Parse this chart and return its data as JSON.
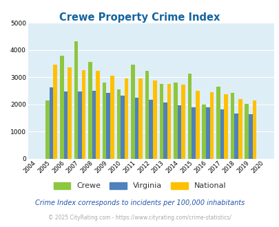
{
  "title": "Crewe Property Crime Index",
  "years": [
    2004,
    2005,
    2006,
    2007,
    2008,
    2009,
    2010,
    2011,
    2012,
    2013,
    2014,
    2015,
    2016,
    2017,
    2018,
    2019,
    2020
  ],
  "crewe": [
    0,
    2150,
    3780,
    4320,
    3550,
    2800,
    2550,
    3450,
    3220,
    2750,
    2800,
    3120,
    2000,
    2650,
    2430,
    2020,
    0
  ],
  "virginia": [
    0,
    2630,
    2480,
    2480,
    2510,
    2420,
    2320,
    2260,
    2160,
    2080,
    1970,
    1900,
    1900,
    1820,
    1660,
    1640,
    0
  ],
  "national": [
    0,
    3450,
    3360,
    3250,
    3220,
    3060,
    2960,
    2960,
    2890,
    2760,
    2730,
    2500,
    2460,
    2370,
    2200,
    2140,
    0
  ],
  "crewe_color": "#8dc63f",
  "virginia_color": "#4f81bd",
  "national_color": "#ffc000",
  "plot_bg": "#deeef6",
  "ylim": [
    0,
    5000
  ],
  "yticks": [
    0,
    1000,
    2000,
    3000,
    4000,
    5000
  ],
  "subtitle": "Crime Index corresponds to incidents per 100,000 inhabitants",
  "footer": "© 2025 CityRating.com - https://www.cityrating.com/crime-statistics/",
  "title_color": "#1464a0",
  "subtitle_color": "#2255aa",
  "footer_color": "#aaaaaa"
}
